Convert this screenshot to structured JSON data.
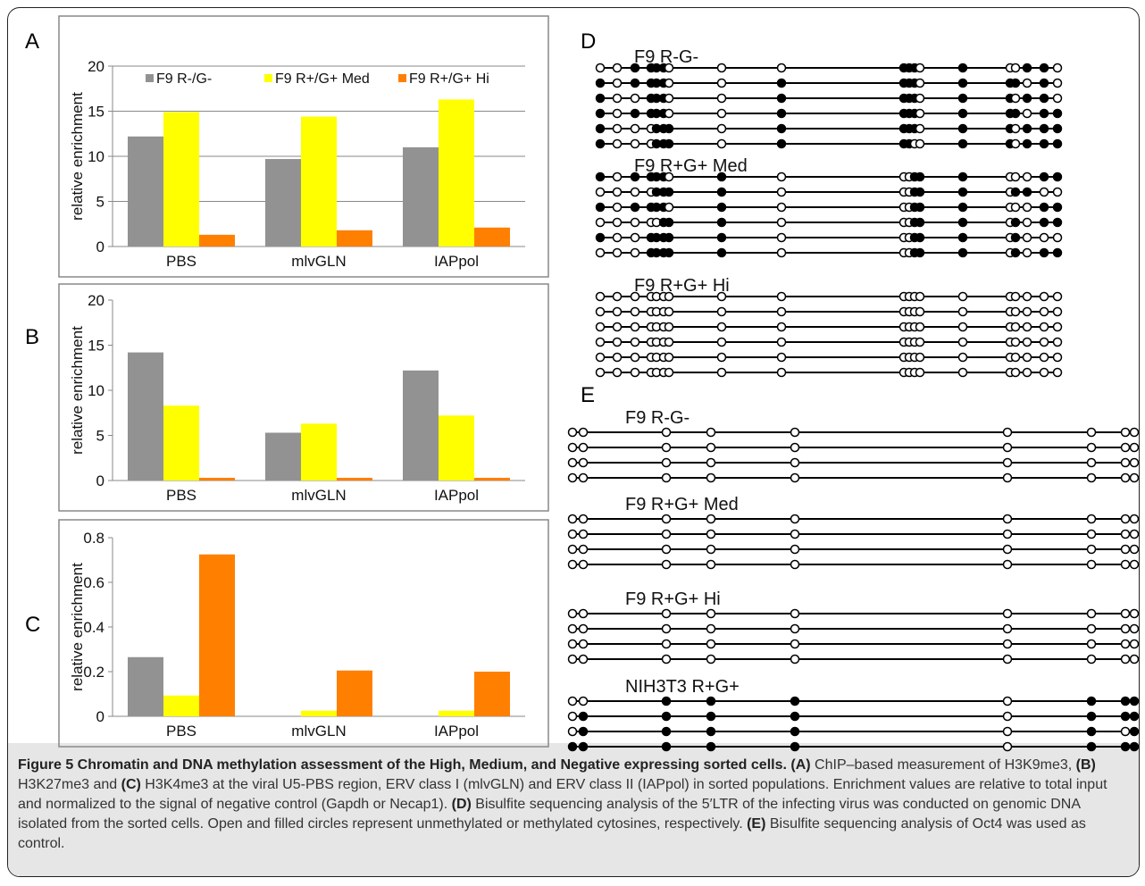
{
  "panels": {
    "A": {
      "letter": "A"
    },
    "B": {
      "letter": "B"
    },
    "C": {
      "letter": "C"
    },
    "D": {
      "letter": "D"
    },
    "E": {
      "letter": "E"
    }
  },
  "chart_data": [
    {
      "panel": "A",
      "type": "bar",
      "categories": [
        "PBS",
        "mlvGLN",
        "IAPpol"
      ],
      "series": [
        {
          "name": "F9  R-/G-",
          "values": [
            12.2,
            9.7,
            11.0
          ]
        },
        {
          "name": "F9 R+/G+ Med",
          "values": [
            14.9,
            14.4,
            16.3
          ]
        },
        {
          "name": "F9 R+/G+ Hi",
          "values": [
            1.3,
            1.8,
            2.1
          ]
        }
      ],
      "colors": [
        "#929292",
        "#ffff00",
        "#ff7f00"
      ],
      "ylabel": "relative enrichment",
      "ylim": [
        0,
        20
      ],
      "yticks": [
        0,
        5,
        10,
        15,
        20
      ],
      "ytick_labels": [
        "0",
        "5",
        "10",
        "15",
        "20"
      ],
      "grid": true,
      "legend": "top"
    },
    {
      "panel": "B",
      "type": "bar",
      "categories": [
        "PBS",
        "mlvGLN",
        "IAPpol"
      ],
      "series": [
        {
          "values": [
            14.2,
            5.3,
            12.2
          ]
        },
        {
          "values": [
            8.3,
            6.3,
            7.2
          ]
        },
        {
          "values": [
            0.3,
            0.3,
            0.3
          ]
        }
      ],
      "colors": [
        "#929292",
        "#ffff00",
        "#ff7f00"
      ],
      "ylabel": "relative enrichment",
      "ylim": [
        0,
        20
      ],
      "yticks": [
        0,
        5,
        10,
        15,
        20
      ],
      "ytick_labels": [
        "0",
        "5",
        "10",
        "15",
        "20"
      ],
      "grid": false
    },
    {
      "panel": "C",
      "type": "bar",
      "categories": [
        "PBS",
        "mlvGLN",
        "IAPpol"
      ],
      "series": [
        {
          "values": [
            0.265,
            0.0,
            0.0
          ]
        },
        {
          "values": [
            0.093,
            0.025,
            0.025
          ]
        },
        {
          "values": [
            0.725,
            0.205,
            0.2
          ]
        }
      ],
      "colors": [
        "#929292",
        "#ffff00",
        "#ff7f00"
      ],
      "ylabel": "relative enrichment",
      "ylim": [
        0,
        0.8
      ],
      "yticks": [
        0,
        0.2,
        0.4,
        0.6,
        0.8
      ],
      "ytick_labels": [
        "0",
        "0.2",
        "0.4",
        "0.6",
        "0.8"
      ],
      "grid": false
    }
  ],
  "methylation_d": {
    "groups": [
      {
        "label": "F9 R-G-",
        "rows": [
          "0011110001110100110",
          "1011110011110111010",
          "1001110011110110110",
          "1011110011110111011",
          "1000111011110110111",
          "1000111011100110111"
        ]
      },
      {
        "label": "F9 R+G+ Med",
        "rows": [
          "1011110100011100011",
          "0000111100011101100",
          "1011110100011100011",
          "0000011100011101011",
          "1001111100011101000",
          "0001111100011101011"
        ]
      },
      {
        "label": "F9 R+G+ Hi",
        "rows": [
          "0000000000000000000",
          "0000000000000000000",
          "0000000000000000000",
          "0000000000000000000",
          "0000000000000000000",
          "0000000000000000000"
        ]
      }
    ]
  },
  "methylation_e": {
    "groups": [
      {
        "label": "F9 R-G-",
        "rows": [
          "000000000",
          "000000000",
          "000000000",
          "000000000"
        ]
      },
      {
        "label": "F9 R+G+ Med",
        "rows": [
          "000000000",
          "000000000",
          "000000000",
          "000000000"
        ]
      },
      {
        "label": "F9 R+G+ Hi",
        "rows": [
          "000000000",
          "000000000",
          "000000000",
          "000000000"
        ]
      },
      {
        "label": "NIH3T3 R+G+",
        "rows": [
          "001110111",
          "011110111",
          "011110101",
          "111110111"
        ]
      }
    ]
  },
  "caption": {
    "title": "Figure 5 Chromatin and DNA methylation assessment of the High, Medium, and Negative expressing sorted cells.",
    "a_tag": "(A)",
    "a_text": " ChIP–based measurement of H3K9me3, ",
    "b_tag": "(B)",
    "b_text": " H3K27me3 and ",
    "c_tag": "(C)",
    "c_text": " H3K4me3 at the viral U5-PBS region, ERV class I (mlvGLN) and ERV class II (IAPpol) in sorted populations. Enrichment values are relative to total input and normalized to the signal of negative control (Gapdh or Necap1). ",
    "d_tag": "(D)",
    "d_text": " Bisulfite sequencing analysis of the 5′LTR of the infecting virus was conducted on genomic DNA isolated from the sorted cells. Open and filled circles represent unmethylated or methylated cytosines, respectively. ",
    "e_tag": "(E)",
    "e_text": " Bisulfite sequencing analysis of Oct4 was used as control."
  }
}
